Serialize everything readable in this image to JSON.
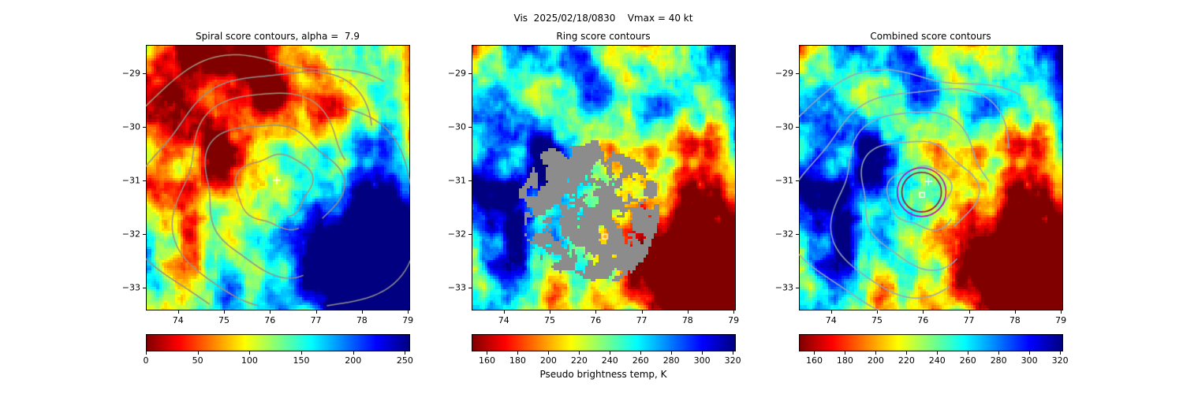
{
  "figure": {
    "suptitle": "Vis  2025/02/18/0830    Vmax = 40 kt",
    "background": "#ffffff",
    "colorbar_xlabel": "Pseudo brightness temp, K"
  },
  "chart_data": [
    {
      "type": "heatmap",
      "title": "Spiral score contours, alpha =  7.9",
      "x_ticks": [
        74,
        75,
        76,
        77,
        78,
        79
      ],
      "y_ticks": [
        -29,
        -30,
        -31,
        -32,
        -33
      ],
      "xlim": [
        73.3,
        79.05
      ],
      "ylim": [
        -33.43,
        -28.47
      ],
      "colormap": "jet_r",
      "colorbar": {
        "vmin": 0,
        "vmax": 255,
        "ticks": [
          0,
          50,
          100,
          150,
          200,
          250
        ]
      },
      "overlays": {
        "contour_color_a": "#a5927b",
        "contour_color_b": "#90908e",
        "high_score_region": {
          "cx": 78.2,
          "cy": -32.6
        },
        "plus_marker": {
          "x": 76.15,
          "y": -31.0,
          "color": "#ffffff"
        }
      }
    },
    {
      "type": "heatmap",
      "title": "Ring score contours",
      "x_ticks": [
        74,
        75,
        76,
        77,
        78,
        79
      ],
      "y_ticks": [
        -29,
        -30,
        -31,
        -32,
        -33
      ],
      "xlim": [
        73.3,
        79.05
      ],
      "ylim": [
        -33.43,
        -28.47
      ],
      "colormap": "jet_r",
      "colorbar": {
        "vmin": 150,
        "vmax": 322,
        "ticks": [
          160,
          180,
          200,
          220,
          240,
          260,
          280,
          300,
          320
        ]
      },
      "overlays": {
        "masked_disk": {
          "cx": 75.9,
          "cy": -31.55,
          "radius_deg": 1.5,
          "color": "#8c8c8c"
        },
        "cold_cloud_region": {
          "cx": 78.2,
          "cy": -32.7
        },
        "square_marker": {
          "x": 76.2,
          "y": -32.05,
          "color": "#ffffff"
        }
      }
    },
    {
      "type": "heatmap",
      "title": "Combined score contours",
      "x_ticks": [
        74,
        75,
        76,
        77,
        78,
        79
      ],
      "y_ticks": [
        -29,
        -30,
        -31,
        -32,
        -33
      ],
      "xlim": [
        73.3,
        79.05
      ],
      "ylim": [
        -33.43,
        -28.47
      ],
      "colormap": "jet_r",
      "colorbar": {
        "vmin": 150,
        "vmax": 322,
        "ticks": [
          160,
          180,
          200,
          220,
          240,
          260,
          280,
          300,
          320
        ]
      },
      "overlays": {
        "contour_color": "#93a8bd",
        "ring_outer": {
          "cx": 75.97,
          "cy": -31.22,
          "radius_deg": 0.53,
          "color": "#c000c0"
        },
        "ring_inner": {
          "cx": 75.97,
          "cy": -31.22,
          "radius_deg": 0.43,
          "color": "#a01030"
        },
        "plus_marker": {
          "x": 76.12,
          "y": -31.02,
          "color": "#ffffff"
        },
        "square_marker": {
          "x": 75.98,
          "y": -31.27,
          "color": "#ffffff"
        }
      }
    }
  ]
}
